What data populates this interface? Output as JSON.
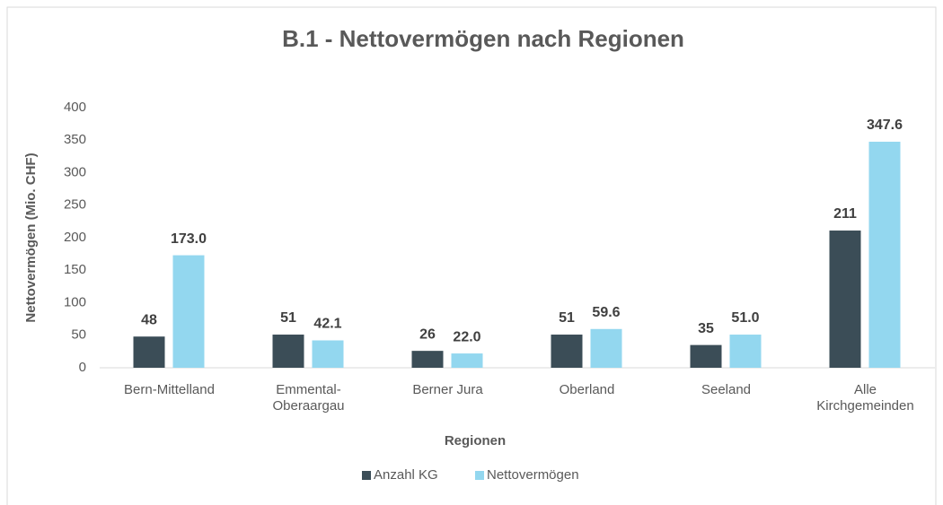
{
  "chart_data": {
    "type": "bar",
    "title": "B.1 - Nettovermögen nach Regionen",
    "x_label": "Regionen",
    "y_label": "Nettovermögen (Mio. CHF)",
    "categories": [
      "Bern-Mittelland",
      "Emmental-Oberaargau",
      "Berner Jura",
      "Oberland",
      "Seeland",
      "Alle Kirchgemeinden"
    ],
    "series": [
      {
        "name": "Anzahl KG",
        "color": "#3b4d57",
        "values": [
          48,
          51,
          26,
          51,
          35,
          211
        ]
      },
      {
        "name": "Nettovermögen",
        "color": "#93d7ef",
        "values": [
          173,
          42.1,
          22,
          59.6,
          51,
          347.6
        ],
        "value_labels": [
          "173.0",
          "42.1",
          "22.0",
          "59.6",
          "51.0",
          "347.6"
        ]
      }
    ],
    "ylim": [
      0,
      400
    ],
    "yticks": [
      0,
      50,
      100,
      150,
      200,
      250,
      300,
      350,
      400
    ],
    "grid": false,
    "legend": "bottom"
  }
}
